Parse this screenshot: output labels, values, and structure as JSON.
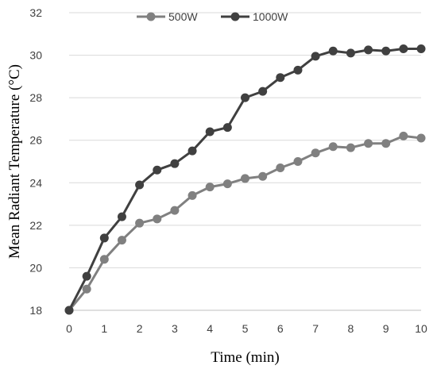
{
  "chart_data": {
    "type": "line",
    "title": "",
    "xlabel": "Time (min)",
    "ylabel": "Mean Radiant Temperature (°C)",
    "xlim": [
      0,
      10
    ],
    "ylim": [
      18,
      32
    ],
    "xticks": [
      "0",
      "1",
      "2",
      "3",
      "4",
      "5",
      "6",
      "7",
      "8",
      "9",
      "10"
    ],
    "yticks": [
      "18",
      "20",
      "22",
      "24",
      "26",
      "28",
      "30",
      "32"
    ],
    "grid": "horizontal",
    "legend_position": "top-center",
    "x": [
      0,
      0.5,
      1,
      1.5,
      2,
      2.5,
      3,
      3.5,
      4,
      4.5,
      5,
      5.5,
      6,
      6.5,
      7,
      7.5,
      8,
      8.5,
      9,
      9.5,
      10
    ],
    "series": [
      {
        "name": "500W",
        "color": "#808080",
        "values": [
          18.0,
          19.0,
          20.4,
          21.3,
          22.1,
          22.3,
          22.7,
          23.4,
          23.8,
          23.95,
          24.2,
          24.3,
          24.7,
          25.0,
          25.4,
          25.7,
          25.65,
          25.85,
          25.85,
          26.2,
          26.1
        ]
      },
      {
        "name": "1000W",
        "color": "#404040",
        "values": [
          18.0,
          19.6,
          21.4,
          22.4,
          23.9,
          24.6,
          24.9,
          25.5,
          26.4,
          26.6,
          28.0,
          28.3,
          28.95,
          29.3,
          29.95,
          30.2,
          30.1,
          30.25,
          30.2,
          30.3,
          30.3
        ]
      }
    ]
  }
}
